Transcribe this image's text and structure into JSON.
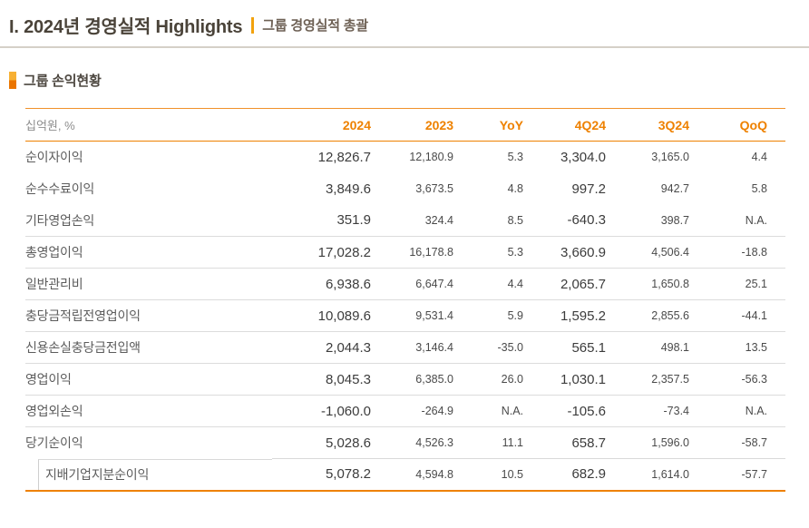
{
  "page": {
    "title": "I. 2024년 경영실적 Highlights",
    "subtitle": "그룹 경영실적 총괄",
    "section_title": "그룹 손익현황"
  },
  "colors": {
    "accent_orange": "#ee8100",
    "section_bar_top": "#f7b033",
    "section_bar_bottom": "#ea7500",
    "title_text": "#4a4339",
    "subtitle_text": "#6e6155",
    "row_divider": "#dcdcdc"
  },
  "table": {
    "unit_label": "십억원, %",
    "columns": [
      "2024",
      "2023",
      "YoY",
      "4Q24",
      "3Q24",
      "QoQ"
    ],
    "emphasized_columns": [
      0,
      3
    ],
    "rows": [
      {
        "label": "순이자이익",
        "values": [
          "12,826.7",
          "12,180.9",
          "5.3",
          "3,304.0",
          "3,165.0",
          "4.4"
        ],
        "divider": false,
        "sub": false
      },
      {
        "label": "순수수료이익",
        "values": [
          "3,849.6",
          "3,673.5",
          "4.8",
          "997.2",
          "942.7",
          "5.8"
        ],
        "divider": false,
        "sub": false
      },
      {
        "label": "기타영업손익",
        "values": [
          "351.9",
          "324.4",
          "8.5",
          "-640.3",
          "398.7",
          "N.A."
        ],
        "divider": true,
        "sub": false
      },
      {
        "label": "총영업이익",
        "values": [
          "17,028.2",
          "16,178.8",
          "5.3",
          "3,660.9",
          "4,506.4",
          "-18.8"
        ],
        "divider": true,
        "sub": false
      },
      {
        "label": "일반관리비",
        "values": [
          "6,938.6",
          "6,647.4",
          "4.4",
          "2,065.7",
          "1,650.8",
          "25.1"
        ],
        "divider": true,
        "sub": false
      },
      {
        "label": "충당금적립전영업이익",
        "values": [
          "10,089.6",
          "9,531.4",
          "5.9",
          "1,595.2",
          "2,855.6",
          "-44.1"
        ],
        "divider": true,
        "sub": false
      },
      {
        "label": "신용손실충당금전입액",
        "values": [
          "2,044.3",
          "3,146.4",
          "-35.0",
          "565.1",
          "498.1",
          "13.5"
        ],
        "divider": true,
        "sub": false
      },
      {
        "label": "영업이익",
        "values": [
          "8,045.3",
          "6,385.0",
          "26.0",
          "1,030.1",
          "2,357.5",
          "-56.3"
        ],
        "divider": true,
        "sub": false
      },
      {
        "label": "영업외손익",
        "values": [
          "-1,060.0",
          "-264.9",
          "N.A.",
          "-105.6",
          "-73.4",
          "N.A."
        ],
        "divider": true,
        "sub": false
      },
      {
        "label": "당기순이익",
        "values": [
          "5,028.6",
          "4,526.3",
          "11.1",
          "658.7",
          "1,596.0",
          "-58.7"
        ],
        "divider": false,
        "sub": false
      },
      {
        "label": "지배기업지분순이익",
        "values": [
          "5,078.2",
          "4,594.8",
          "10.5",
          "682.9",
          "1,614.0",
          "-57.7"
        ],
        "divider": false,
        "sub": true
      }
    ]
  }
}
